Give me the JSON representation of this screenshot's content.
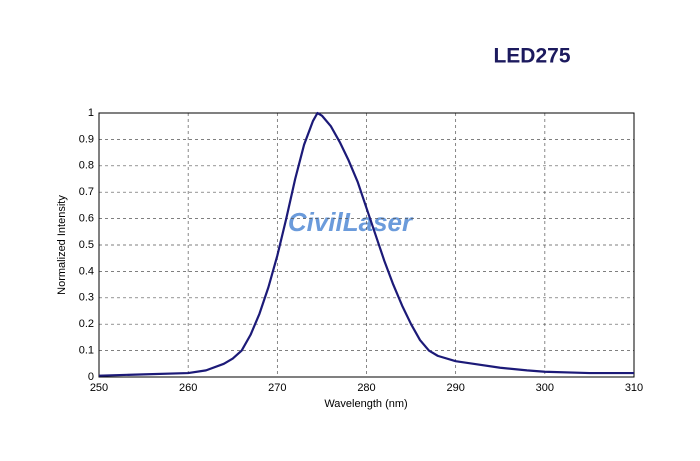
{
  "chart_data": {
    "type": "line",
    "title": "LED275",
    "watermark": "CivilLaser",
    "xlabel": "Wavelength (nm)",
    "ylabel": "Normalized Intensity",
    "x": [
      250,
      255,
      260,
      262,
      264,
      265,
      266,
      267,
      268,
      269,
      270,
      271,
      272,
      273,
      274,
      274.5,
      275,
      276,
      277,
      278,
      279,
      280,
      281,
      282,
      283,
      284,
      285,
      286,
      287,
      288,
      290,
      292,
      295,
      298,
      300,
      305,
      310
    ],
    "series": [
      {
        "name": "LED275",
        "color": "#1c1a78",
        "values": [
          0.005,
          0.01,
          0.015,
          0.025,
          0.05,
          0.07,
          0.1,
          0.16,
          0.24,
          0.34,
          0.46,
          0.6,
          0.75,
          0.88,
          0.97,
          1.0,
          0.99,
          0.95,
          0.89,
          0.82,
          0.74,
          0.64,
          0.54,
          0.44,
          0.35,
          0.27,
          0.2,
          0.14,
          0.1,
          0.08,
          0.06,
          0.05,
          0.035,
          0.025,
          0.02,
          0.015,
          0.015
        ]
      }
    ],
    "xlim": [
      250,
      310
    ],
    "xticks": [
      250,
      260,
      270,
      280,
      290,
      300,
      310
    ],
    "ylim": [
      0,
      1
    ],
    "yticks": [
      0,
      0.1,
      0.2,
      0.3,
      0.4,
      0.5,
      0.6,
      0.7,
      0.8,
      0.9,
      1
    ],
    "grid": true
  }
}
